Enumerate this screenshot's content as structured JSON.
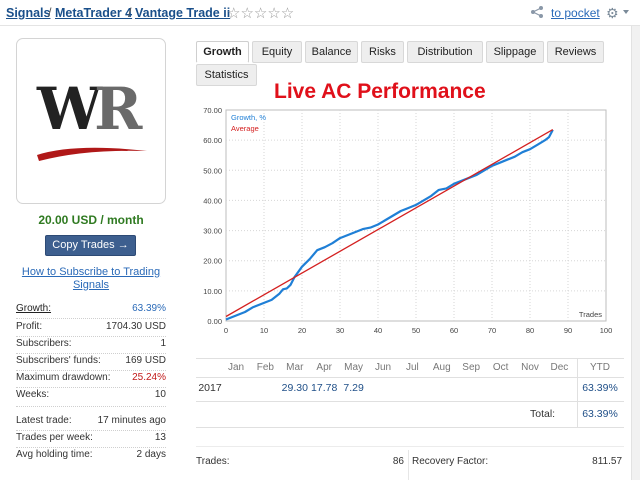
{
  "breadcrumb": {
    "items": [
      "Signals",
      "MetaTrader 4",
      "Vantage Trade ii"
    ],
    "separator": "/"
  },
  "rating": {
    "stars": 0,
    "max_stars": 5,
    "glyph": "☆☆☆☆☆"
  },
  "header": {
    "pocket_link": "to pocket",
    "share_icon": "share-icon",
    "gear_icon": "gear-icon"
  },
  "logo": {
    "text_w": "W",
    "text_r": "R"
  },
  "price": "20.00 USD / month",
  "copy_button": "Copy Trades →",
  "howto_link": "How to Subscribe to Trading Signals",
  "stats": [
    {
      "label": "Growth:",
      "value": "63.39%"
    },
    {
      "label": "Profit:",
      "value": "1704.30 USD"
    },
    {
      "label": "Subscribers:",
      "value": "1"
    },
    {
      "label": "Subscribers' funds:",
      "value": "169 USD"
    },
    {
      "label": "Maximum drawdown:",
      "value": "25.24%"
    },
    {
      "label": "Weeks:",
      "value": "10"
    },
    {
      "label": "Latest trade:",
      "value": "17 minutes ago"
    },
    {
      "label": "Trades per week:",
      "value": "13"
    },
    {
      "label": "Avg holding time:",
      "value": "2 days"
    }
  ],
  "tabs": [
    {
      "label": "Growth",
      "active": true
    },
    {
      "label": "Equity",
      "active": false
    },
    {
      "label": "Balance",
      "active": false
    },
    {
      "label": "Risks",
      "active": false
    },
    {
      "label": "Distribution",
      "active": false
    },
    {
      "label": "Slippage",
      "active": false
    },
    {
      "label": "Reviews",
      "active": false
    },
    {
      "label": "Statistics",
      "active": false
    }
  ],
  "overlay_title": "Live AC Performance",
  "chart_data": {
    "type": "line",
    "xlabel": "Trades",
    "ylabel": "",
    "xlim": [
      0,
      100
    ],
    "ylim": [
      0,
      70
    ],
    "x_ticks": [
      "0",
      "10",
      "20",
      "30",
      "40",
      "50",
      "60",
      "70",
      "80",
      "90",
      "100"
    ],
    "y_ticks": [
      "0.00",
      "10.00",
      "20.00",
      "30.00",
      "40.00",
      "50.00",
      "60.00",
      "70.00"
    ],
    "grid": true,
    "legend": "top-left",
    "series": [
      {
        "name": "Growth, %",
        "color": "#1f7fd6",
        "x": [
          0,
          1,
          3,
          5,
          7,
          9,
          10,
          12,
          14,
          15,
          16,
          17,
          18,
          20,
          22,
          24,
          26,
          28,
          30,
          32,
          34,
          36,
          38,
          40,
          42,
          44,
          46,
          48,
          50,
          52,
          54,
          56,
          58,
          60,
          62,
          64,
          66,
          68,
          70,
          72,
          74,
          76,
          78,
          80,
          82,
          84,
          85,
          86
        ],
        "y": [
          0.5,
          1.0,
          2.0,
          3.0,
          4.5,
          5.5,
          6.0,
          7.0,
          9.0,
          10.5,
          10.8,
          12.0,
          14.5,
          18.0,
          20.5,
          23.5,
          24.5,
          25.8,
          27.5,
          28.5,
          29.5,
          30.5,
          31.0,
          32.0,
          33.5,
          35.0,
          36.5,
          37.5,
          38.5,
          40.0,
          41.5,
          43.5,
          44.0,
          45.5,
          46.5,
          47.5,
          48.5,
          50.0,
          51.5,
          52.5,
          53.5,
          54.5,
          56.0,
          57.0,
          58.5,
          60.0,
          61.0,
          63.39
        ]
      },
      {
        "name": "Average",
        "color": "#d42020",
        "x": [
          0,
          86
        ],
        "y": [
          1.5,
          63.5
        ]
      }
    ]
  },
  "monthly": {
    "months": [
      "Jan",
      "Feb",
      "Mar",
      "Apr",
      "May",
      "Jun",
      "Jul",
      "Aug",
      "Sep",
      "Oct",
      "Nov",
      "Dec"
    ],
    "ytd_header": "YTD",
    "year": "2017",
    "values": [
      "",
      "",
      "29.30",
      "17.78",
      "7.29",
      "",
      "",
      "",
      "",
      "",
      "",
      ""
    ],
    "ytd": "63.39%",
    "total_label": "Total:",
    "total": "63.39%"
  },
  "bottom_stats": {
    "trades_label": "Trades:",
    "trades_value": "86",
    "recovery_label": "Recovery Factor:",
    "recovery_value": "811.57"
  }
}
